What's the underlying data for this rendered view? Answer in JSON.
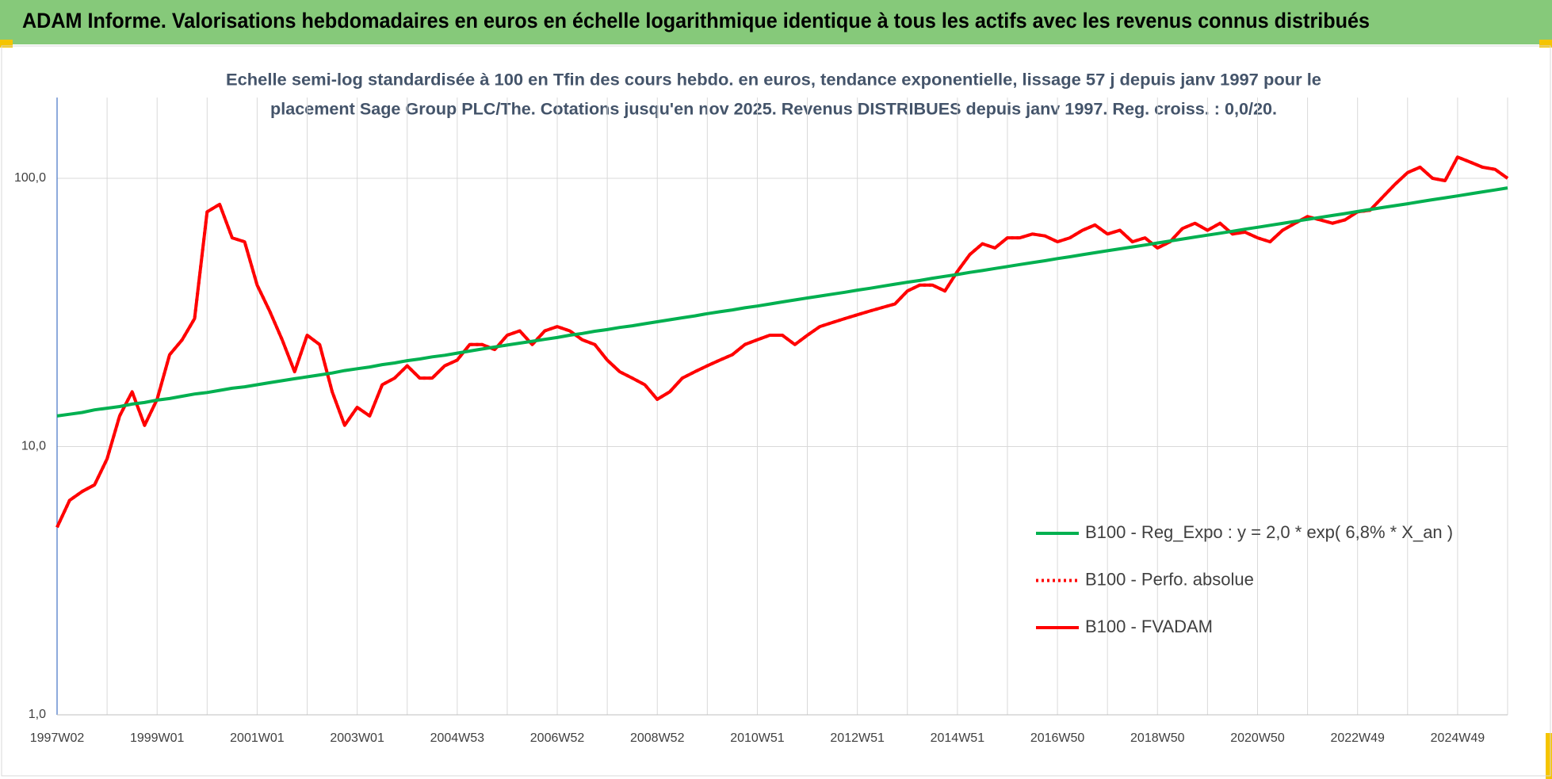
{
  "header": {
    "title": "ADAM Informe. Valorisations hebdomadaires en euros en échelle logarithmique identique à tous les actifs avec les revenus connus distribués"
  },
  "chart_data": {
    "type": "line",
    "subtitle": [
      "Echelle semi-log standardisée à 100 en Tfin des cours hebdo. en euros, tendance exponentielle, lissage 57 j depuis janv 1997 pour le",
      "placement Sage Group PLC/The. Cotations jusqu'en nov 2025. Revenus DISTRIBUES depuis janv 1997. Reg. croiss. : 0,0/20."
    ],
    "log_scale": true,
    "grid": true,
    "legend": "right",
    "ylim": [
      1,
      200
    ],
    "yticks": [
      {
        "value": 1,
        "label": "1,0"
      },
      {
        "value": 10,
        "label": "10,0"
      },
      {
        "value": 100,
        "label": "100,0"
      }
    ],
    "categories": [
      "1997W02",
      null,
      null,
      null,
      null,
      null,
      null,
      null,
      "1999W01",
      null,
      null,
      null,
      null,
      null,
      null,
      null,
      "2001W01",
      null,
      null,
      null,
      null,
      null,
      null,
      null,
      "2003W01",
      null,
      null,
      null,
      null,
      null,
      null,
      null,
      "2004W53",
      null,
      null,
      null,
      null,
      null,
      null,
      null,
      "2006W52",
      null,
      null,
      null,
      null,
      null,
      null,
      null,
      "2008W52",
      null,
      null,
      null,
      null,
      null,
      null,
      null,
      "2010W51",
      null,
      null,
      null,
      null,
      null,
      null,
      null,
      "2012W51",
      null,
      null,
      null,
      null,
      null,
      null,
      null,
      "2014W51",
      null,
      null,
      null,
      null,
      null,
      null,
      null,
      "2016W50",
      null,
      null,
      null,
      null,
      null,
      null,
      null,
      "2018W50",
      null,
      null,
      null,
      null,
      null,
      null,
      null,
      "2020W50",
      null,
      null,
      null,
      null,
      null,
      null,
      null,
      "2022W49",
      null,
      null,
      null,
      null,
      null,
      null,
      null,
      "2024W49",
      null,
      null,
      null,
      null
    ],
    "series": [
      {
        "name": "B100 - Reg_Expo : y = 2,0 * exp( 6,8% *  X_an )",
        "color": "#00b050",
        "dash": "solid",
        "values": [
          13.0,
          13.2,
          13.4,
          13.7,
          13.9,
          14.1,
          14.4,
          14.6,
          14.9,
          15.1,
          15.4,
          15.7,
          15.9,
          16.2,
          16.5,
          16.7,
          17.0,
          17.3,
          17.6,
          17.9,
          18.2,
          18.5,
          18.8,
          19.2,
          19.5,
          19.8,
          20.2,
          20.5,
          20.9,
          21.2,
          21.6,
          21.9,
          22.3,
          22.7,
          23.1,
          23.5,
          23.9,
          24.3,
          24.7,
          25.1,
          25.5,
          26.0,
          26.4,
          26.9,
          27.3,
          27.8,
          28.2,
          28.7,
          29.2,
          29.7,
          30.2,
          30.7,
          31.3,
          31.8,
          32.3,
          32.9,
          33.4,
          34.0,
          34.6,
          35.2,
          35.8,
          36.4,
          37.0,
          37.6,
          38.3,
          38.9,
          39.6,
          40.3,
          41.0,
          41.6,
          42.4,
          43.1,
          43.8,
          44.6,
          45.3,
          46.1,
          46.9,
          47.7,
          48.5,
          49.3,
          50.2,
          51.0,
          51.9,
          52.8,
          53.7,
          54.6,
          55.5,
          56.4,
          57.4,
          58.4,
          59.4,
          60.4,
          61.4,
          62.4,
          63.5,
          64.6,
          65.7,
          66.8,
          67.9,
          69.1,
          70.3,
          71.5,
          72.7,
          73.9,
          75.2,
          76.5,
          77.8,
          79.1,
          80.4,
          81.8,
          83.2,
          84.6,
          86.0,
          87.5,
          89.0,
          90.5,
          92.1
        ]
      },
      {
        "name": "B100 - Perfo. absolue",
        "color": "#ff0000",
        "dash": "dotted",
        "values": [
          5.0,
          6.3,
          6.8,
          7.2,
          9,
          13,
          16,
          12,
          15,
          22,
          25,
          30,
          75,
          80,
          60,
          58,
          40,
          32,
          25,
          19,
          26,
          24,
          16,
          12,
          14,
          13,
          17,
          18,
          20,
          18,
          18,
          20,
          21,
          24,
          24,
          23,
          26,
          27,
          24,
          27,
          28,
          27,
          25,
          24,
          21,
          19,
          18,
          17,
          15,
          16,
          18,
          19,
          20,
          21,
          22,
          24,
          25,
          26,
          26,
          24,
          26,
          28,
          29,
          30,
          31,
          32,
          33,
          34,
          38,
          40,
          40,
          38,
          45,
          52,
          57,
          55,
          60,
          60,
          62,
          61,
          58,
          60,
          64,
          67,
          62,
          64,
          58,
          60,
          55,
          58,
          65,
          68,
          64,
          68,
          62,
          63,
          60,
          58,
          64,
          68,
          72,
          70,
          68,
          70,
          75,
          76,
          85,
          95,
          105,
          110,
          100,
          98,
          120,
          115,
          110,
          108,
          100
        ]
      },
      {
        "name": "B100 - FVADAM",
        "color": "#ff0000",
        "dash": "solid",
        "values": [
          5.0,
          6.3,
          6.8,
          7.2,
          9,
          13,
          16,
          12,
          15,
          22,
          25,
          30,
          75,
          80,
          60,
          58,
          40,
          32,
          25,
          19,
          26,
          24,
          16,
          12,
          14,
          13,
          17,
          18,
          20,
          18,
          18,
          20,
          21,
          24,
          24,
          23,
          26,
          27,
          24,
          27,
          28,
          27,
          25,
          24,
          21,
          19,
          18,
          17,
          15,
          16,
          18,
          19,
          20,
          21,
          22,
          24,
          25,
          26,
          26,
          24,
          26,
          28,
          29,
          30,
          31,
          32,
          33,
          34,
          38,
          40,
          40,
          38,
          45,
          52,
          57,
          55,
          60,
          60,
          62,
          61,
          58,
          60,
          64,
          67,
          62,
          64,
          58,
          60,
          55,
          58,
          65,
          68,
          64,
          68,
          62,
          63,
          60,
          58,
          64,
          68,
          72,
          70,
          68,
          70,
          75,
          76,
          85,
          95,
          105,
          110,
          100,
          98,
          120,
          115,
          110,
          108,
          100
        ]
      }
    ]
  }
}
